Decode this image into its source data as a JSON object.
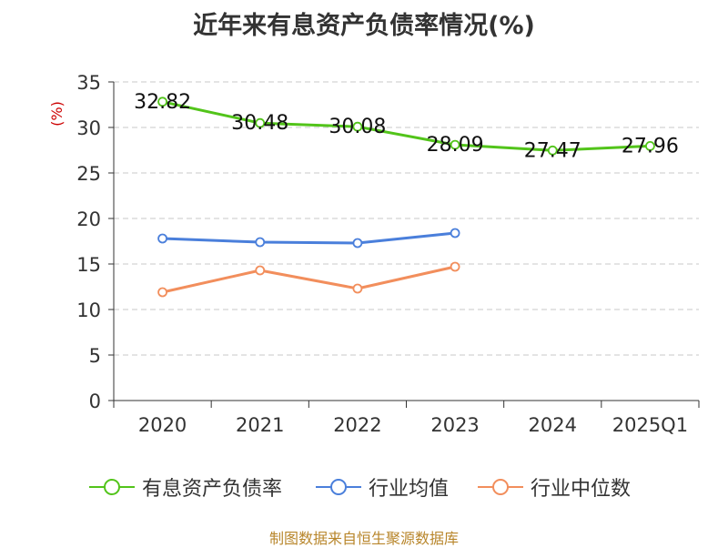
{
  "chart_data": {
    "type": "line",
    "title": "近年来有息资产负债率情况(%)",
    "ylabel": "(%)",
    "xlabel": "",
    "categories": [
      "2020",
      "2021",
      "2022",
      "2023",
      "2024",
      "2025Q1"
    ],
    "ylim": [
      0,
      35
    ],
    "yticks": [
      0,
      5,
      10,
      15,
      20,
      25,
      30,
      35
    ],
    "grid": true,
    "legend_position": "bottom",
    "series": [
      {
        "name": "有息资产负债率",
        "color": "#52c41a",
        "values": [
          32.82,
          30.48,
          30.08,
          28.09,
          27.47,
          27.96
        ],
        "labels": [
          "32.82",
          "30.48",
          "30.08",
          "28.09",
          "27.47",
          "27.96"
        ]
      },
      {
        "name": "行业均值",
        "color": "#4a7fdb",
        "values": [
          17.8,
          17.4,
          17.3,
          18.4,
          null,
          null
        ]
      },
      {
        "name": "行业中位数",
        "color": "#f28e5c",
        "values": [
          11.9,
          14.3,
          12.3,
          14.7,
          null,
          null
        ]
      }
    ]
  },
  "source": "制图数据来自恒生聚源数据库"
}
